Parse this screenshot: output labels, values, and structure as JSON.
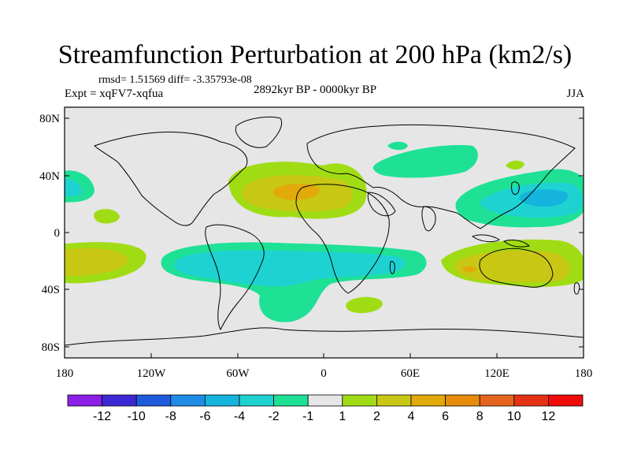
{
  "title": "Streamfunction Perturbation at 200 hPa (km2/s)",
  "stats": "rmsd= 1.51569 diff= -3.35793e-08",
  "experiment": "Expt = xqFV7-xqfua",
  "period": "2892kyr BP - 0000kyr BP",
  "season": "JJA",
  "axes": {
    "lat_labels": [
      "80N",
      "40N",
      "0",
      "40S",
      "80S"
    ],
    "lon_labels": [
      "180",
      "120W",
      "60W",
      "0",
      "60E",
      "120E",
      "180"
    ]
  },
  "colorbar": {
    "labels": [
      "-12",
      "-10",
      "-8",
      "-6",
      "-4",
      "-2",
      "-1",
      "1",
      "2",
      "4",
      "6",
      "8",
      "10",
      "12"
    ],
    "colors": [
      "#8c1ee6",
      "#3c28d2",
      "#1e5adc",
      "#1e8ce6",
      "#14b4dc",
      "#1ed2d2",
      "#1ee196",
      "#e6e6e6",
      "#a0dc14",
      "#c8c814",
      "#e1aa0a",
      "#e68c0a",
      "#e6641e",
      "#e63214",
      "#f00a0a"
    ]
  },
  "colors": {
    "background": "#e6e6e6",
    "positive_1": "#a0dc14",
    "positive_2": "#c8c814",
    "positive_3": "#e1aa0a",
    "positive_4": "#e68c0a",
    "negative_1": "#1ee196",
    "negative_2": "#1ed2d2",
    "negative_3": "#14b4dc"
  }
}
